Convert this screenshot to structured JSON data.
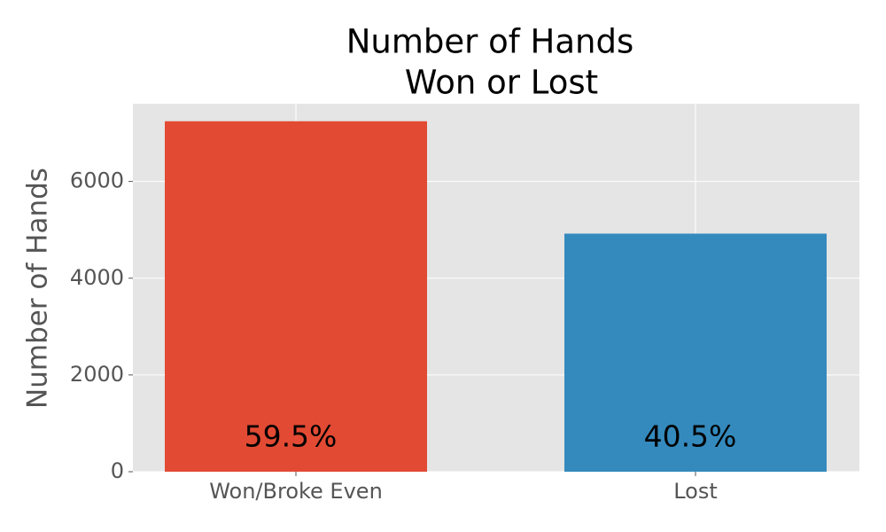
{
  "chart_data": {
    "type": "bar",
    "title": [
      "Number of Hands",
      "Won or Lost"
    ],
    "ylabel": "Number of Hands",
    "categories": [
      "Won/Broke Even",
      "Lost"
    ],
    "values": [
      7244,
      4921
    ],
    "colors": [
      "#E24A33",
      "#348ABD"
    ],
    "annotations": [
      "59.5%",
      "40.5%"
    ],
    "ylim": [
      0,
      7606
    ],
    "yticks": [
      0,
      2000,
      4000,
      6000
    ],
    "grid": true
  }
}
